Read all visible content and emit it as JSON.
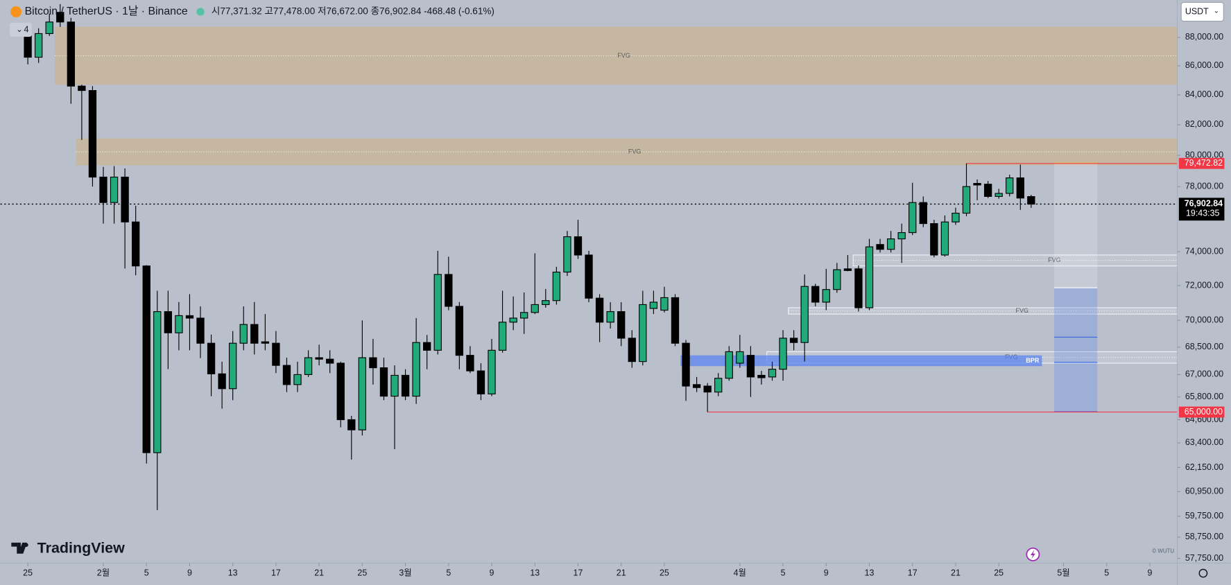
{
  "header": {
    "symbol": "Bitcoin / TetherUS · 1날 · Binance",
    "ohlc": "시77,371.32 고77,478.00 저76,672.00 종76,902.84 -468.48 (-0.61%)",
    "currency": "USDT",
    "badge": "4",
    "logo": "TradingView",
    "watermark": "© WUTU"
  },
  "chart_data": {
    "type": "candlestick",
    "log": true,
    "grid": false,
    "up_color": "#22ab7a",
    "down_color": "#000000",
    "x": [
      "01-25",
      "01-26",
      "01-27",
      "01-28",
      "01-29",
      "01-30",
      "01-31",
      "02-01",
      "02-02",
      "02-03",
      "02-04",
      "02-05",
      "02-06",
      "02-07",
      "02-08",
      "02-09",
      "02-10",
      "02-11",
      "02-12",
      "02-13",
      "02-14",
      "02-15",
      "02-16",
      "02-17",
      "02-18",
      "02-19",
      "02-20",
      "02-21",
      "02-22",
      "02-23",
      "02-24",
      "02-25",
      "02-26",
      "02-27",
      "02-28",
      "03-01",
      "03-02",
      "03-03",
      "03-04",
      "03-05",
      "03-06",
      "03-07",
      "03-08",
      "03-09",
      "03-10",
      "03-11",
      "03-12",
      "03-13",
      "03-14",
      "03-15",
      "03-16",
      "03-17",
      "03-18",
      "03-19",
      "03-20",
      "03-21",
      "03-22",
      "03-23",
      "03-24",
      "03-25",
      "03-26",
      "03-27",
      "03-28",
      "03-29",
      "03-30",
      "03-31",
      "04-01",
      "04-02",
      "04-03",
      "04-04",
      "04-05",
      "04-06",
      "04-07",
      "04-08",
      "04-09",
      "04-10",
      "04-11",
      "04-12",
      "04-13",
      "04-14",
      "04-15",
      "04-16",
      "04-17",
      "04-18",
      "04-19",
      "04-20",
      "04-21",
      "04-22",
      "04-23",
      "04-24",
      "04-25",
      "04-26",
      "04-27",
      "04-28"
    ],
    "open": [
      88100,
      86600,
      88270,
      89800,
      89100,
      84600,
      84300,
      78600,
      77000,
      78600,
      75800,
      73150,
      62900,
      70500,
      69300,
      70270,
      70130,
      68720,
      67040,
      66240,
      68720,
      69770,
      68800,
      68720,
      67500,
      66460,
      67000,
      67920,
      67840,
      67620,
      64600,
      64070,
      67920,
      67370,
      65840,
      66960,
      65840,
      68760,
      68330,
      72650,
      70800,
      68050,
      67200,
      65960,
      68330,
      69900,
      70130,
      70450,
      70900,
      71130,
      72790,
      74900,
      73800,
      71270,
      69900,
      70500,
      69000,
      67710,
      70680,
      70580,
      71300,
      68720,
      66460,
      66380,
      66060,
      66800,
      67620,
      68050,
      66960,
      66870,
      67290,
      69000,
      68760,
      71950,
      71040,
      71770,
      72980,
      72980,
      70720,
      74430,
      74140,
      74770,
      75150,
      77000,
      75700,
      73800,
      75800,
      76340,
      78200,
      78150,
      77380,
      77570,
      78550,
      77371.32
    ],
    "high": [
      88500,
      88650,
      89700,
      90400,
      89400,
      84700,
      84600,
      79250,
      79300,
      79150,
      76800,
      73200,
      71700,
      71700,
      71050,
      71500,
      70800,
      69200,
      67700,
      69400,
      70800,
      71050,
      70360,
      69400,
      67920,
      67700,
      68330,
      68640,
      68330,
      67700,
      64800,
      70000,
      68960,
      67920,
      67500,
      67290,
      70130,
      69180,
      74050,
      73700,
      71050,
      68560,
      67620,
      68960,
      71700,
      71370,
      71600,
      73900,
      71800,
      73100,
      75250,
      75930,
      74050,
      71500,
      71040,
      71040,
      69450,
      71700,
      71700,
      71930,
      71500,
      68900,
      66870,
      66540,
      67080,
      68560,
      69180,
      68560,
      67200,
      67700,
      69450,
      69450,
      72650,
      72100,
      72980,
      73330,
      73800,
      73180,
      74770,
      74770,
      75250,
      75700,
      78240,
      77380,
      75930,
      76200,
      76680,
      79472.82,
      78450,
      78350,
      77860,
      78750,
      79400,
      77478
    ],
    "low": [
      86100,
      86200,
      88100,
      88750,
      83400,
      81000,
      78000,
      75700,
      75700,
      73000,
      72600,
      62350,
      60050,
      67300,
      68330,
      68330,
      67900,
      65840,
      65180,
      65630,
      68330,
      68100,
      68330,
      67080,
      66060,
      66060,
      66870,
      67500,
      67080,
      64200,
      62550,
      63780,
      66460,
      65630,
      63080,
      65630,
      65430,
      67290,
      68100,
      70580,
      67290,
      67080,
      65630,
      65840,
      68200,
      69450,
      69240,
      70360,
      70720,
      70900,
      72560,
      73570,
      71040,
      68780,
      69540,
      68560,
      67370,
      67500,
      70360,
      70450,
      68560,
      65590,
      66060,
      65000,
      65840,
      66670,
      67370,
      65800,
      66460,
      66670,
      66670,
      68330,
      67710,
      70800,
      70580,
      71580,
      72840,
      70500,
      70580,
      73950,
      73950,
      73330,
      75000,
      75480,
      73660,
      73710,
      75620,
      76150,
      77140,
      77280,
      77240,
      77380,
      76540,
      76672
    ],
    "close": [
      86600,
      88270,
      89100,
      89100,
      84600,
      84300,
      78600,
      77000,
      78600,
      75800,
      73150,
      62900,
      70500,
      69300,
      70270,
      70130,
      68720,
      67040,
      66240,
      68720,
      69770,
      68720,
      68720,
      67500,
      66460,
      67000,
      67920,
      67840,
      67620,
      64600,
      64070,
      67920,
      67370,
      65840,
      66960,
      65840,
      68760,
      68330,
      72650,
      70800,
      68050,
      67200,
      65960,
      68330,
      69900,
      70130,
      70450,
      70900,
      71130,
      72790,
      74900,
      73800,
      71270,
      69900,
      70500,
      69000,
      67710,
      70900,
      71040,
      71300,
      68720,
      66380,
      66300,
      66060,
      66800,
      68250,
      68250,
      66870,
      66830,
      67290,
      69000,
      68760,
      71950,
      71040,
      71770,
      72930,
      72880,
      70720,
      74290,
      74140,
      74770,
      75150,
      77000,
      75700,
      73800,
      75800,
      76340,
      78000,
      78100,
      77380,
      77570,
      78550,
      77280,
      76902.84
    ],
    "ylim": [
      57530,
      90700
    ],
    "yticks": [
      {
        "value": 88000,
        "label": "88,000.00"
      },
      {
        "value": 86000,
        "label": "86,000.00"
      },
      {
        "value": 84000,
        "label": "84,000.00"
      },
      {
        "value": 82000,
        "label": "82,000.00"
      },
      {
        "value": 80000,
        "label": "80,000.00"
      },
      {
        "value": 78000,
        "label": "78,000.00"
      },
      {
        "value": 74000,
        "label": "74,000.00"
      },
      {
        "value": 72000,
        "label": "72,000.00"
      },
      {
        "value": 70000,
        "label": "70,000.00"
      },
      {
        "value": 68500,
        "label": "68,500.00"
      },
      {
        "value": 67000,
        "label": "67,000.00"
      },
      {
        "value": 65800,
        "label": "65,800.00"
      },
      {
        "value": 64600,
        "label": "64,600.00"
      },
      {
        "value": 63400,
        "label": "63,400.00"
      },
      {
        "value": 62150,
        "label": "62,150.00"
      },
      {
        "value": 60950,
        "label": "60,950.00"
      },
      {
        "value": 59750,
        "label": "59,750.00"
      },
      {
        "value": 58750,
        "label": "58,750.00"
      },
      {
        "value": 57750,
        "label": "57,750.00"
      }
    ],
    "xticks": [
      {
        "value": "01-25",
        "label": "25"
      },
      {
        "value": "02-01",
        "label": "2월"
      },
      {
        "value": "02-05",
        "label": "5"
      },
      {
        "value": "02-09",
        "label": "9"
      },
      {
        "value": "02-13",
        "label": "13"
      },
      {
        "value": "02-17",
        "label": "17"
      },
      {
        "value": "02-21",
        "label": "21"
      },
      {
        "value": "02-25",
        "label": "25"
      },
      {
        "value": "03-01",
        "label": "3월"
      },
      {
        "value": "03-05",
        "label": "5"
      },
      {
        "value": "03-09",
        "label": "9"
      },
      {
        "value": "03-13",
        "label": "13"
      },
      {
        "value": "03-17",
        "label": "17"
      },
      {
        "value": "03-21",
        "label": "21"
      },
      {
        "value": "03-25",
        "label": "25"
      },
      {
        "value": "04-01",
        "label": "4월"
      },
      {
        "value": "04-05",
        "label": "5"
      },
      {
        "value": "04-09",
        "label": "9"
      },
      {
        "value": "04-13",
        "label": "13"
      },
      {
        "value": "04-17",
        "label": "17"
      },
      {
        "value": "04-21",
        "label": "21"
      },
      {
        "value": "04-25",
        "label": "25"
      },
      {
        "value": "05-01",
        "label": "5월"
      },
      {
        "value": "05-05",
        "label": "5"
      },
      {
        "value": "05-09",
        "label": "9"
      }
    ],
    "zones": [
      {
        "label": "FVG",
        "from": "01-28",
        "top": 88750,
        "bottom": 84700,
        "color": "#d2b07a"
      },
      {
        "label": "FVG",
        "from": "01-30",
        "top": 81100,
        "bottom": 79350,
        "color": "#d2b07a"
      },
      {
        "label": "FVG",
        "from": "04-12",
        "top": 73800,
        "bottom": 73150,
        "color": "#ffffff"
      },
      {
        "label": "FVG",
        "from": "04-06",
        "top": 70720,
        "bottom": 70360,
        "color": "#ffffff"
      },
      {
        "label": "FVG",
        "from": "04-04",
        "top": 68250,
        "bottom": 67620,
        "color": "#ffffff"
      },
      {
        "label": "BPR",
        "from": "03-27",
        "to": "04-29",
        "top": 68050,
        "bottom": 67460,
        "color": "#5b84f0"
      }
    ],
    "levels": [
      {
        "value": 79472.82,
        "label": "79,472.82",
        "from": "04-22",
        "color": "#f23645"
      },
      {
        "value": 65000,
        "label": "65,000.00",
        "from": "03-29",
        "color": "#f23645"
      }
    ],
    "last_price": {
      "value": 76902.84,
      "label": "76,902.84",
      "countdown": "19:43:35"
    }
  }
}
